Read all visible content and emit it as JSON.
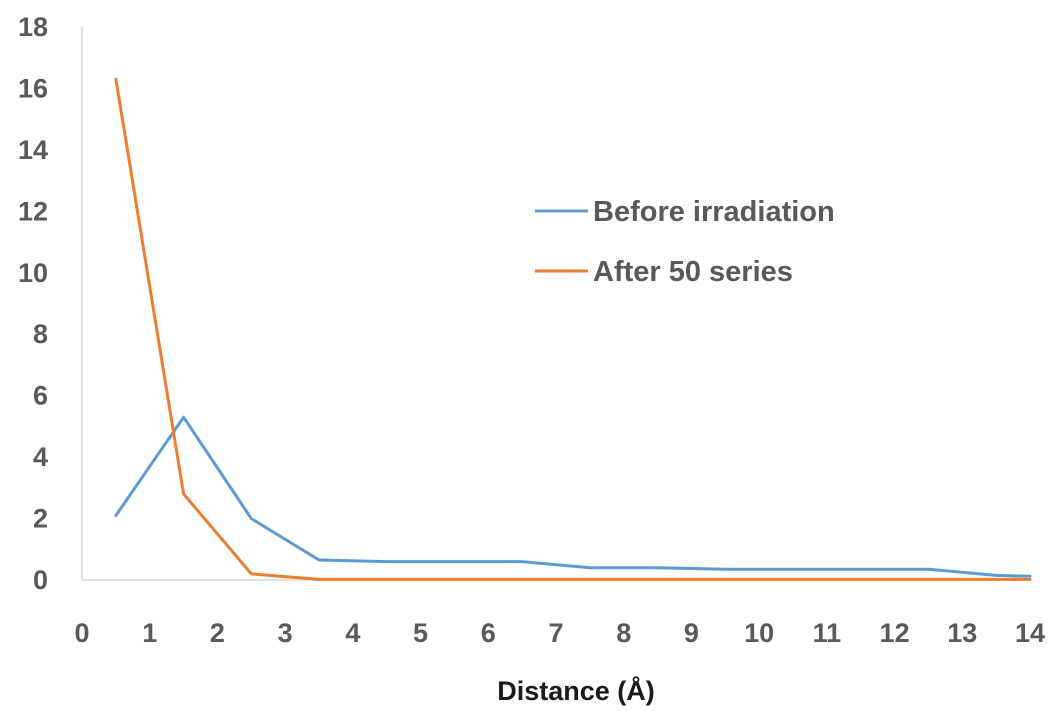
{
  "chart_data": {
    "type": "line",
    "title": "",
    "xlabel": "Distance (Å)",
    "ylabel": "",
    "xlim": [
      0,
      14
    ],
    "ylim": [
      0,
      18
    ],
    "xticks": [
      0,
      1,
      2,
      3,
      4,
      5,
      6,
      7,
      8,
      9,
      10,
      11,
      12,
      13,
      14
    ],
    "yticks": [
      0,
      2,
      4,
      6,
      8,
      10,
      12,
      14,
      16,
      18
    ],
    "grid": false,
    "legend_position": "right",
    "x": [
      0.5,
      1.5,
      2.5,
      3.5,
      4.5,
      5.5,
      6.5,
      7.5,
      8.5,
      9.5,
      10.5,
      11.5,
      12.5,
      13.5,
      14
    ],
    "series": [
      {
        "name": "Before irradiation",
        "color": "#5b9bd5",
        "values": [
          2.1,
          5.3,
          2.0,
          0.65,
          0.6,
          0.6,
          0.6,
          0.4,
          0.4,
          0.35,
          0.35,
          0.35,
          0.35,
          0.15,
          0.12
        ]
      },
      {
        "name": "After 50 series",
        "color": "#ed7d31",
        "values": [
          16.3,
          2.8,
          0.2,
          0.02,
          0.02,
          0.02,
          0.02,
          0.02,
          0.02,
          0.02,
          0.02,
          0.02,
          0.02,
          0.02,
          0.02
        ]
      }
    ]
  }
}
